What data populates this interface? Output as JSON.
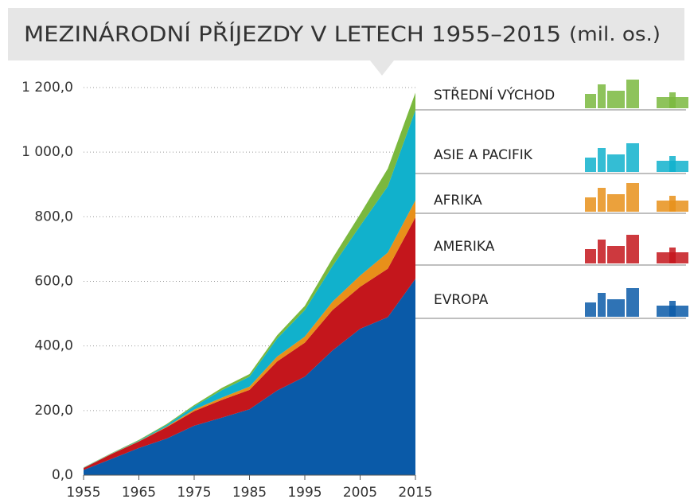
{
  "chart_data": {
    "type": "stacked_area",
    "title": "MEZINÁRODNÍ PŘÍJEZDY V LETECH 1955–2015",
    "subtitle": "(mil. os.)",
    "x": [
      1955,
      1960,
      1965,
      1970,
      1975,
      1980,
      1985,
      1990,
      1995,
      2000,
      2005,
      2010,
      2015
    ],
    "xlim": [
      1955,
      2015
    ],
    "xticks": [
      1955,
      1965,
      1975,
      1985,
      1995,
      2005,
      2015
    ],
    "ylim": [
      0,
      1200
    ],
    "yticks": [
      {
        "value": 0,
        "label": "0,0"
      },
      {
        "value": 200,
        "label": "200,0"
      },
      {
        "value": 400,
        "label": "400,0"
      },
      {
        "value": 600,
        "label": "600,0"
      },
      {
        "value": 800,
        "label": "800,0"
      },
      {
        "value": 1000,
        "label": "1 000,0"
      },
      {
        "value": 1200,
        "label": "1 200,0"
      }
    ],
    "grid": true,
    "series": [
      {
        "name": "EVROPA",
        "color": "#0a5aa8",
        "values": [
          16,
          50,
          84,
          113,
          153,
          178,
          204,
          262,
          305,
          386,
          453,
          489,
          608
        ]
      },
      {
        "name": "AMERIKA",
        "color": "#c4161c",
        "values": [
          6,
          15,
          20,
          35,
          45,
          55,
          60,
          90,
          105,
          125,
          130,
          150,
          190
        ]
      },
      {
        "name": "AFRIKA",
        "color": "#e8901a",
        "values": [
          0.5,
          0.8,
          1,
          2,
          5,
          7,
          10,
          15,
          19,
          26,
          35,
          50,
          53
        ]
      },
      {
        "name": "ASIE A PACIFIK",
        "color": "#11b1cc",
        "values": [
          1,
          1,
          2,
          5,
          10,
          23,
          31,
          56,
          82,
          110,
          154,
          205,
          279
        ]
      },
      {
        "name": "STŘEDNÍ VÝCHOD",
        "color": "#7ab83e",
        "values": [
          0.5,
          1,
          2,
          3,
          4,
          7,
          8,
          10,
          13,
          24,
          36,
          55,
          54
        ]
      }
    ]
  }
}
